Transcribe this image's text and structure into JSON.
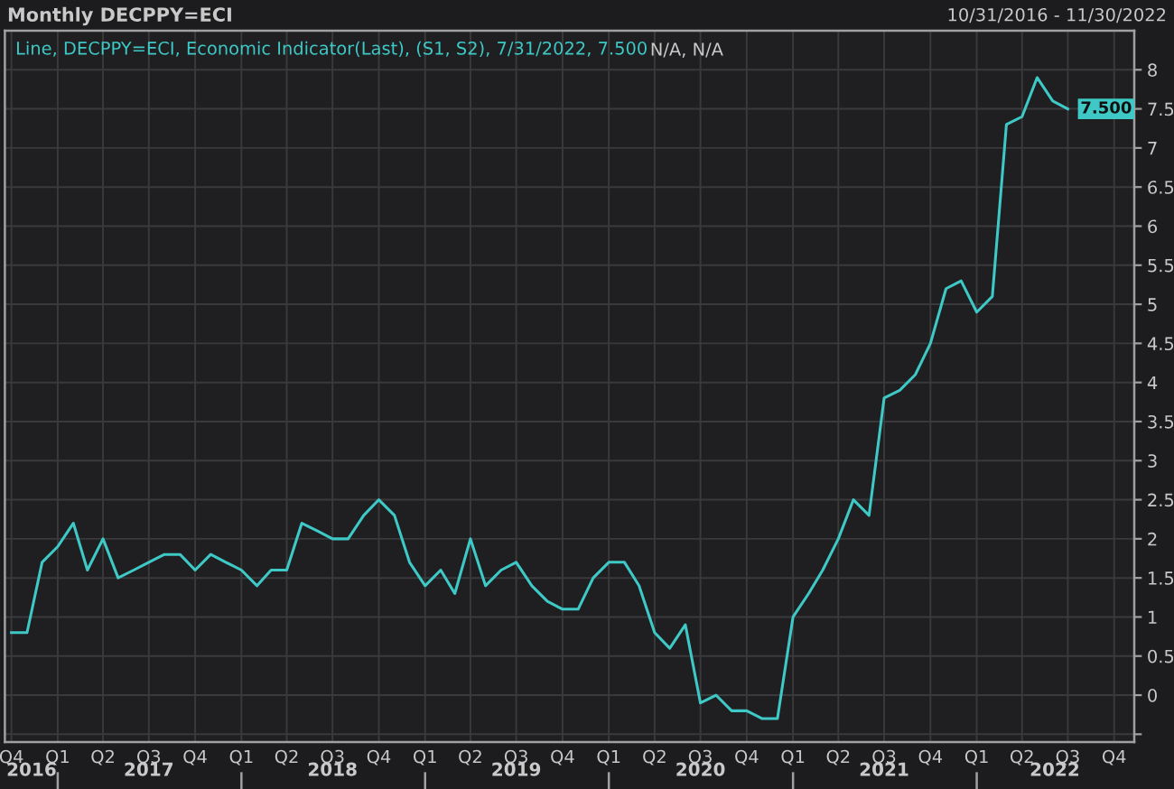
{
  "chart_data": {
    "type": "line",
    "title": "Monthly DECPPY=ECI",
    "subtitle": "10/31/2016 - 11/30/2022",
    "x": [
      "2016-10",
      "2016-11",
      "2016-12",
      "2017-01",
      "2017-02",
      "2017-03",
      "2017-04",
      "2017-05",
      "2017-06",
      "2017-07",
      "2017-08",
      "2017-09",
      "2017-10",
      "2017-11",
      "2017-12",
      "2018-01",
      "2018-02",
      "2018-03",
      "2018-04",
      "2018-05",
      "2018-06",
      "2018-07",
      "2018-08",
      "2018-09",
      "2018-10",
      "2018-11",
      "2018-12",
      "2019-01",
      "2019-02",
      "2019-03",
      "2019-04",
      "2019-05",
      "2019-06",
      "2019-07",
      "2019-08",
      "2019-09",
      "2019-10",
      "2019-11",
      "2019-12",
      "2020-01",
      "2020-02",
      "2020-03",
      "2020-04",
      "2020-05",
      "2020-06",
      "2020-07",
      "2020-08",
      "2020-09",
      "2020-10",
      "2020-11",
      "2020-12",
      "2021-01",
      "2021-02",
      "2021-03",
      "2021-04",
      "2021-05",
      "2021-06",
      "2021-07",
      "2021-08",
      "2021-09",
      "2021-10",
      "2021-11",
      "2021-12",
      "2022-01",
      "2022-02",
      "2022-03",
      "2022-04",
      "2022-05",
      "2022-06",
      "2022-07"
    ],
    "series": [
      {
        "name": "Line, DECPPY=ECI, Economic Indicator(Last), (S1, S2), 7/31/2022, 7.500",
        "color": "#3ec9c6",
        "values": [
          0.8,
          0.8,
          1.7,
          1.9,
          2.2,
          1.6,
          2.0,
          1.5,
          1.6,
          1.7,
          1.8,
          1.8,
          1.6,
          1.8,
          1.7,
          1.6,
          1.4,
          1.6,
          1.6,
          2.2,
          2.1,
          2.0,
          2.0,
          2.3,
          2.5,
          2.3,
          1.7,
          1.4,
          1.6,
          1.3,
          2.0,
          1.4,
          1.6,
          1.7,
          1.4,
          1.2,
          1.1,
          1.1,
          1.5,
          1.7,
          1.7,
          1.4,
          0.8,
          0.6,
          0.9,
          -0.1,
          0.0,
          -0.2,
          -0.2,
          -0.3,
          -0.3,
          1.0,
          1.3,
          1.6,
          2.0,
          2.5,
          2.3,
          3.8,
          3.9,
          4.1,
          4.5,
          5.2,
          5.3,
          4.9,
          5.1,
          7.3,
          7.4,
          7.9,
          7.6,
          7.5
        ],
        "value_labels": [
          null,
          null,
          null,
          null,
          null,
          null,
          null,
          null,
          null,
          null,
          null,
          null,
          null,
          null,
          null,
          null,
          null,
          null,
          null,
          null,
          null,
          null,
          null,
          null,
          null,
          null,
          null,
          null,
          null,
          null,
          null,
          null,
          null,
          null,
          null,
          null,
          null,
          null,
          null,
          null,
          null,
          null,
          null,
          null,
          null,
          null,
          null,
          null,
          null,
          null,
          null,
          null,
          null,
          null,
          null,
          null,
          null,
          null,
          null,
          null,
          null,
          null,
          null,
          null,
          null,
          null,
          null,
          null,
          null,
          "7.500"
        ]
      }
    ],
    "xlim": [
      "2016-09-18",
      "2022-11-10"
    ],
    "xticks": [
      {
        "value": "2016-10",
        "label": "Q4"
      },
      {
        "value": "2017-01",
        "label": "Q1"
      },
      {
        "value": "2017-04",
        "label": "Q2"
      },
      {
        "value": "2017-07",
        "label": "Q3"
      },
      {
        "value": "2017-10",
        "label": "Q4"
      },
      {
        "value": "2018-01",
        "label": "Q1"
      },
      {
        "value": "2018-04",
        "label": "Q2"
      },
      {
        "value": "2018-07",
        "label": "Q3"
      },
      {
        "value": "2018-10",
        "label": "Q4"
      },
      {
        "value": "2019-01",
        "label": "Q1"
      },
      {
        "value": "2019-04",
        "label": "Q2"
      },
      {
        "value": "2019-07",
        "label": "Q3"
      },
      {
        "value": "2019-10",
        "label": "Q4"
      },
      {
        "value": "2020-01",
        "label": "Q1"
      },
      {
        "value": "2020-04",
        "label": "Q2"
      },
      {
        "value": "2020-07",
        "label": "Q3"
      },
      {
        "value": "2020-10",
        "label": "Q4"
      },
      {
        "value": "2021-01",
        "label": "Q1"
      },
      {
        "value": "2021-04",
        "label": "Q2"
      },
      {
        "value": "2021-07",
        "label": "Q3"
      },
      {
        "value": "2021-10",
        "label": "Q4"
      },
      {
        "value": "2022-01",
        "label": "Q1"
      },
      {
        "value": "2022-04",
        "label": "Q2"
      },
      {
        "value": "2022-07",
        "label": "Q3"
      },
      {
        "value": "2022-10",
        "label": "Q4"
      }
    ],
    "x2lim": [
      "2016-09-18",
      "2022-11-10"
    ],
    "x2ticks": [
      {
        "value": "2016-11-10",
        "label": "2016"
      },
      {
        "value": "2017-01",
        "label": null
      },
      {
        "value": "2017-07",
        "label": "2017"
      },
      {
        "value": "2018-01",
        "label": null
      },
      {
        "value": "2018-07",
        "label": "2018"
      },
      {
        "value": "2019-01",
        "label": null
      },
      {
        "value": "2019-07",
        "label": "2019"
      },
      {
        "value": "2020-01",
        "label": null
      },
      {
        "value": "2020-07",
        "label": "2020"
      },
      {
        "value": "2021-01",
        "label": null
      },
      {
        "value": "2021-07",
        "label": "2021"
      },
      {
        "value": "2022-01",
        "label": null
      },
      {
        "value": "2022-06-05",
        "label": "2022"
      }
    ],
    "ylim": [
      -0.6,
      8.5
    ],
    "yticks": [
      {
        "value": -0.5,
        "label": null
      },
      0,
      0.5,
      1,
      1.5,
      2,
      2.5,
      3,
      3.5,
      4,
      4.5,
      5,
      5.5,
      6,
      6.5,
      7,
      7.5,
      8
    ],
    "grid": true,
    "legend": "top left",
    "annotations": [
      "N/A, N/A"
    ]
  }
}
